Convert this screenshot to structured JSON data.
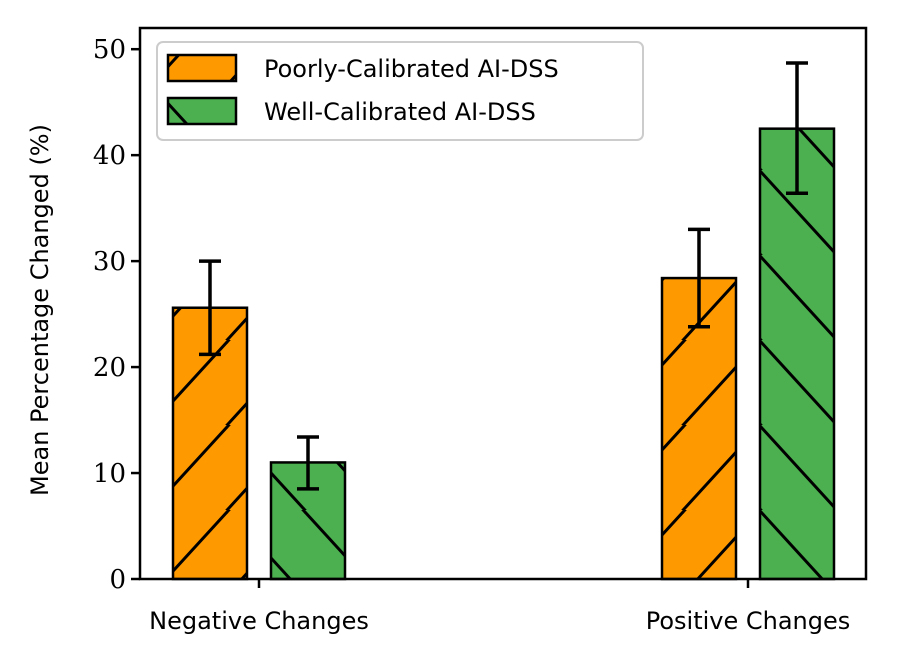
{
  "chart_data": {
    "type": "bar",
    "title": "",
    "xlabel": "",
    "ylabel": "Mean Percentage Changed (%)",
    "ylim": [
      0,
      52
    ],
    "yticks": [
      0,
      10,
      20,
      30,
      40,
      50
    ],
    "categories": [
      "Negative Changes",
      "Positive Changes"
    ],
    "series": [
      {
        "name": "Poorly-Calibrated AI-DSS",
        "color": "#ff9900",
        "hatch": "forward-slash",
        "values": [
          25.6,
          28.4
        ],
        "error": [
          [
            21.2,
            30.0
          ],
          [
            23.8,
            33.0
          ]
        ]
      },
      {
        "name": "Well-Calibrated AI-DSS",
        "color": "#4caf50",
        "hatch": "back-slash",
        "values": [
          11.0,
          42.5
        ],
        "error": [
          [
            8.5,
            13.4
          ],
          [
            36.4,
            48.7
          ]
        ]
      }
    ],
    "legend_position": "top-left",
    "grid": false
  }
}
